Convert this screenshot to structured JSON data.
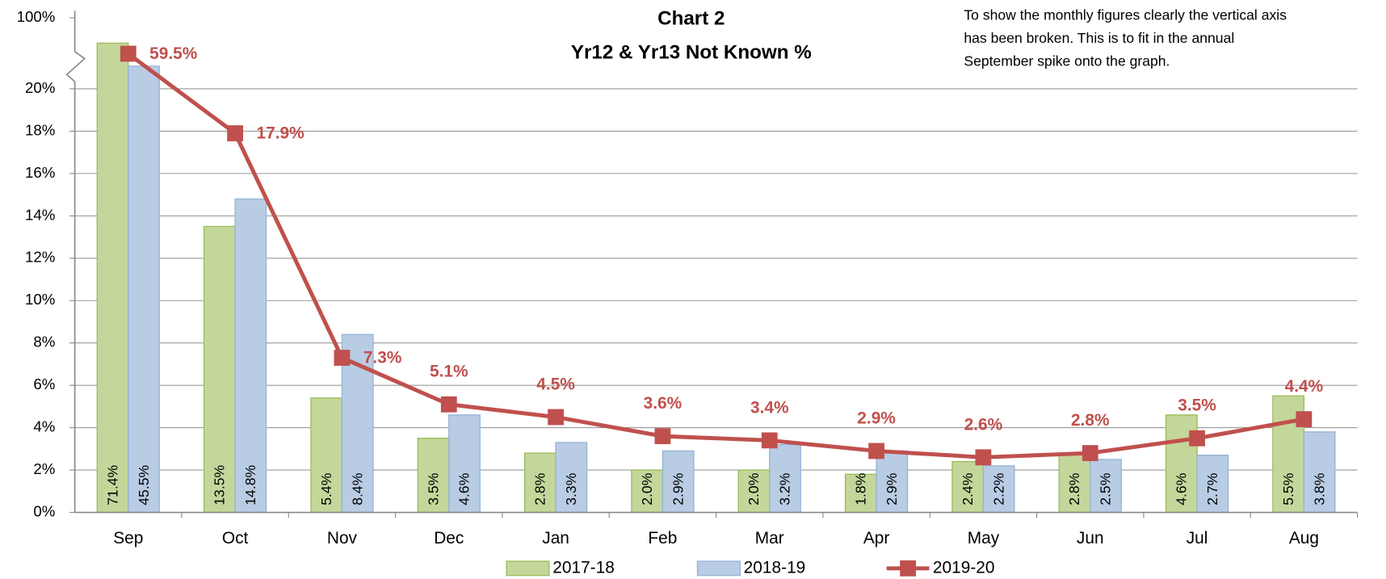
{
  "chart_data": {
    "type": "bar",
    "title": "Chart 2",
    "subtitle": "Yr12 & Yr13 Not Known %",
    "annotation": [
      "To show the monthly figures clearly the vertical axis",
      "has been broken.  This is to fit in the annual",
      "September spike onto the graph."
    ],
    "categories": [
      "Sep",
      "Oct",
      "Nov",
      "Dec",
      "Jan",
      "Feb",
      "Mar",
      "Apr",
      "May",
      "Jun",
      "Jul",
      "Aug"
    ],
    "series": [
      {
        "name": "2017-18",
        "type": "bar",
        "color": "#c4d79b",
        "stroke": "#9bbb59",
        "values": [
          71.4,
          13.5,
          5.4,
          3.5,
          2.8,
          2.0,
          2.0,
          1.8,
          2.4,
          2.8,
          4.6,
          5.5
        ],
        "value_labels": [
          "71.4%",
          "13.5%",
          "5.4%",
          "3.5%",
          "2.8%",
          "2.0%",
          "2.0%",
          "1.8%",
          "2.4%",
          "2.8%",
          "4.6%",
          "5.5%"
        ]
      },
      {
        "name": "2018-19",
        "type": "bar",
        "color": "#b8cce4",
        "stroke": "#95b3d7",
        "values": [
          45.5,
          14.8,
          8.4,
          4.6,
          3.3,
          2.9,
          3.2,
          2.9,
          2.2,
          2.5,
          2.7,
          3.8
        ],
        "value_labels": [
          "45.5%",
          "14.8%",
          "8.4%",
          "4.6%",
          "3.3%",
          "2.9%",
          "3.2%",
          "2.9%",
          "2.2%",
          "2.5%",
          "2.7%",
          "3.8%"
        ]
      },
      {
        "name": "2019-20",
        "type": "line",
        "color": "#c0504d",
        "values": [
          59.5,
          17.9,
          7.3,
          5.1,
          4.5,
          3.6,
          3.4,
          2.9,
          2.6,
          2.8,
          3.5,
          4.4
        ],
        "value_labels": [
          "59.5%",
          "17.9%",
          "7.3%",
          "5.1%",
          "4.5%",
          "3.6%",
          "3.4%",
          "2.9%",
          "2.6%",
          "2.8%",
          "3.5%",
          "4.4%"
        ]
      }
    ],
    "ylim": [
      0,
      100
    ],
    "yticks": [
      {
        "value": 0,
        "label": "0%"
      },
      {
        "value": 2,
        "label": "2%"
      },
      {
        "value": 4,
        "label": "4%"
      },
      {
        "value": 6,
        "label": "6%"
      },
      {
        "value": 8,
        "label": "8%"
      },
      {
        "value": 10,
        "label": "10%"
      },
      {
        "value": 12,
        "label": "12%"
      },
      {
        "value": 14,
        "label": "14%"
      },
      {
        "value": 16,
        "label": "16%"
      },
      {
        "value": 18,
        "label": "18%"
      },
      {
        "value": 20,
        "label": "20%"
      },
      {
        "value": 100,
        "label": "100%"
      }
    ],
    "broken_axis": true,
    "grid": true,
    "legend": "bottom"
  }
}
